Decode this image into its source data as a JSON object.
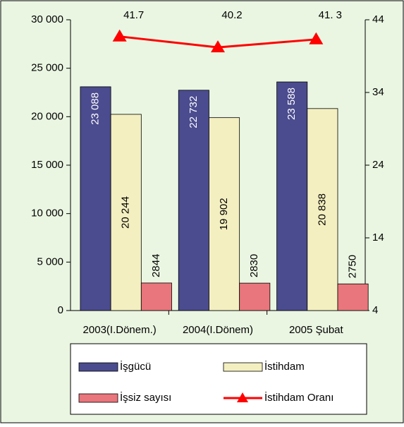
{
  "chart_data": {
    "type": "bar",
    "categories": [
      "2003(I.Dönem.)",
      "2004(I.Dönem)",
      "2005 Şubat"
    ],
    "series": [
      {
        "name": "İşgücü",
        "color": "#4b4b8f",
        "values": [
          23088,
          22732,
          23588
        ],
        "value_labels": [
          "23 088",
          "22 732",
          "23 588"
        ]
      },
      {
        "name": "İstihdam",
        "color": "#f4efc0",
        "values": [
          20244,
          19902,
          20838
        ],
        "value_labels": [
          "20 244",
          "19 902",
          "20 838"
        ]
      },
      {
        "name": "İşsiz sayısı",
        "color": "#e8767c",
        "values": [
          2844,
          2830,
          2750
        ]
      },
      {
        "name": "İstihdam Oranı",
        "color": "#ff0000",
        "type": "line",
        "axis": "y2",
        "values": [
          41.7,
          40.2,
          41.3
        ],
        "value_labels": [
          "41.7",
          "40.2",
          "41. 3"
        ]
      }
    ],
    "ylim": [
      0,
      30000
    ],
    "yticks": [
      {
        "value": 0,
        "label": "0"
      },
      {
        "value": 5000,
        "label": "5 000"
      },
      {
        "value": 10000,
        "label": "10 000"
      },
      {
        "value": 15000,
        "label": "15 000"
      },
      {
        "value": 20000,
        "label": "20 000"
      },
      {
        "value": 25000,
        "label": "25 000"
      },
      {
        "value": 30000,
        "label": "30 000"
      }
    ],
    "y2lim": [
      4,
      44
    ],
    "y2ticks": [
      4,
      14,
      24,
      34,
      44
    ],
    "legend": "bottom"
  }
}
